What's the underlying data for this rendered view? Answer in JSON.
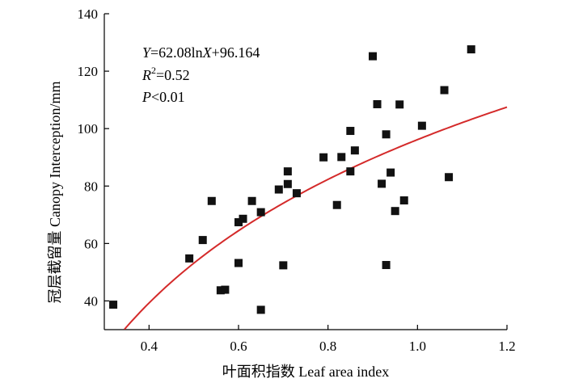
{
  "chart_data": {
    "type": "scatter",
    "xlabel": "叶面积指数 Leaf area index",
    "ylabel": "冠层截留量 Canopy Interception/mm",
    "xlim": [
      0.3,
      1.2
    ],
    "ylim": [
      30,
      140
    ],
    "xticks": [
      {
        "value": 0.4,
        "label": "0.4"
      },
      {
        "value": 0.6,
        "label": "0.6"
      },
      {
        "value": 0.8,
        "label": "0.8"
      },
      {
        "value": 1.0,
        "label": "1.0"
      },
      {
        "value": 1.2,
        "label": "1.2"
      }
    ],
    "yticks": [
      {
        "value": 40,
        "label": "40"
      },
      {
        "value": 60,
        "label": "60"
      },
      {
        "value": 80,
        "label": "80"
      },
      {
        "value": 100,
        "label": "100"
      },
      {
        "value": 120,
        "label": "120"
      },
      {
        "value": 140,
        "label": "140"
      }
    ],
    "annotations": {
      "equation": {
        "pre": "Y",
        "mid": "=62.08ln",
        "x": "X",
        "post": "+96.164"
      },
      "r2": {
        "r": "R",
        "sup": "2",
        "rest": "=0.52"
      },
      "p": {
        "p": "P",
        "rest": "<0.01"
      }
    },
    "fit": {
      "a": 62.08,
      "b": 96.164,
      "x_start": 0.345,
      "x_end": 1.2,
      "color": "#d42a2a"
    },
    "marker_color": "#111111",
    "points": [
      {
        "x": 0.32,
        "y": 38.7
      },
      {
        "x": 0.49,
        "y": 54.8
      },
      {
        "x": 0.52,
        "y": 61.2
      },
      {
        "x": 0.54,
        "y": 74.8
      },
      {
        "x": 0.56,
        "y": 43.7
      },
      {
        "x": 0.57,
        "y": 43.9
      },
      {
        "x": 0.6,
        "y": 67.4
      },
      {
        "x": 0.6,
        "y": 53.2
      },
      {
        "x": 0.61,
        "y": 68.6
      },
      {
        "x": 0.63,
        "y": 74.8
      },
      {
        "x": 0.65,
        "y": 70.9
      },
      {
        "x": 0.65,
        "y": 36.9
      },
      {
        "x": 0.69,
        "y": 78.8
      },
      {
        "x": 0.7,
        "y": 52.4
      },
      {
        "x": 0.71,
        "y": 85.1
      },
      {
        "x": 0.71,
        "y": 80.7
      },
      {
        "x": 0.73,
        "y": 77.5
      },
      {
        "x": 0.79,
        "y": 90.0
      },
      {
        "x": 0.82,
        "y": 73.4
      },
      {
        "x": 0.83,
        "y": 90.1
      },
      {
        "x": 0.85,
        "y": 99.2
      },
      {
        "x": 0.85,
        "y": 85.1
      },
      {
        "x": 0.86,
        "y": 92.4
      },
      {
        "x": 0.9,
        "y": 125.2
      },
      {
        "x": 0.91,
        "y": 108.5
      },
      {
        "x": 0.92,
        "y": 80.8
      },
      {
        "x": 0.93,
        "y": 98.0
      },
      {
        "x": 0.93,
        "y": 52.5
      },
      {
        "x": 0.94,
        "y": 84.7
      },
      {
        "x": 0.95,
        "y": 71.3
      },
      {
        "x": 0.96,
        "y": 108.4
      },
      {
        "x": 0.97,
        "y": 75.0
      },
      {
        "x": 1.01,
        "y": 101.0
      },
      {
        "x": 1.06,
        "y": 113.4
      },
      {
        "x": 1.07,
        "y": 83.1
      },
      {
        "x": 1.12,
        "y": 127.6
      }
    ]
  }
}
